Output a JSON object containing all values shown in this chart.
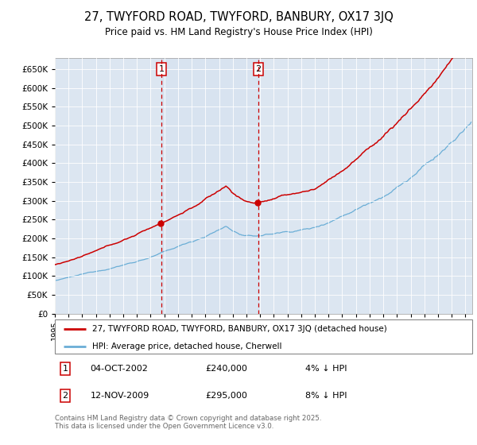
{
  "title": "27, TWYFORD ROAD, TWYFORD, BANBURY, OX17 3JQ",
  "subtitle": "Price paid vs. HM Land Registry's House Price Index (HPI)",
  "ytick_vals": [
    0,
    50000,
    100000,
    150000,
    200000,
    250000,
    300000,
    350000,
    400000,
    450000,
    500000,
    550000,
    600000,
    650000
  ],
  "ylim": [
    0,
    680000
  ],
  "hpi_color": "#6baed6",
  "price_color": "#cc0000",
  "vline_color": "#cc0000",
  "background_color": "#dce6f1",
  "legend_label_price": "27, TWYFORD ROAD, TWYFORD, BANBURY, OX17 3JQ (detached house)",
  "legend_label_hpi": "HPI: Average price, detached house, Cherwell",
  "sale1_year": 2002,
  "sale1_month": 10,
  "sale1_price": 240000,
  "sale1_label": "1",
  "sale1_date": "04-OCT-2002",
  "sale1_price_str": "£240,000",
  "sale1_note": "4% ↓ HPI",
  "sale2_year": 2009,
  "sale2_month": 11,
  "sale2_price": 295000,
  "sale2_label": "2",
  "sale2_date": "12-NOV-2009",
  "sale2_price_str": "£295,000",
  "sale2_note": "8% ↓ HPI",
  "footer": "Contains HM Land Registry data © Crown copyright and database right 2025.\nThis data is licensed under the Open Government Licence v3.0."
}
